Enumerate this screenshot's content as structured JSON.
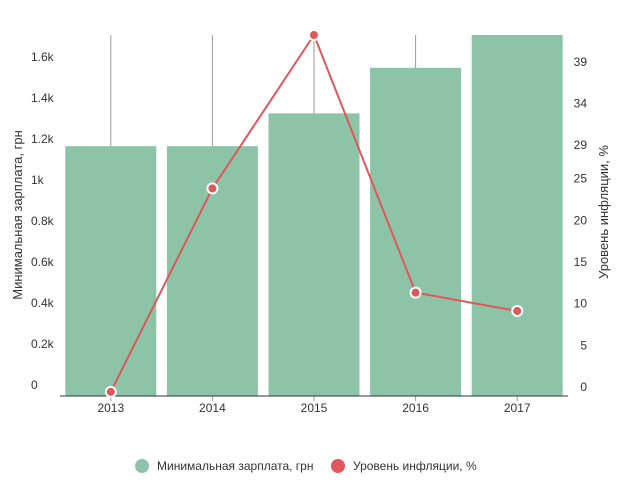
{
  "chart_data": {
    "type": "bar",
    "categories": [
      "2013",
      "2014",
      "2015",
      "2016",
      "2017"
    ],
    "series": [
      {
        "name": "Минимальная зарплата, грн",
        "type": "bar",
        "axis": "left",
        "color": "#8dc3a7",
        "values": [
          1218,
          1218,
          1378,
          1600,
          1760
        ]
      },
      {
        "name": "Уровень инфляции, %",
        "type": "line",
        "axis": "right",
        "color": "#e15759",
        "values": [
          0.5,
          24.9,
          43.3,
          12.4,
          10.2
        ]
      }
    ],
    "y_left": {
      "label": "Минимальная зарплата, грн",
      "ticks": [
        0,
        200,
        400,
        600,
        800,
        1000,
        1200,
        1400,
        1600
      ],
      "tick_labels": [
        "0",
        "0.2k",
        "0.4k",
        "0.6k",
        "0.8k",
        "1k",
        "1.2k",
        "1.4k",
        "1.6k"
      ],
      "range": [
        0,
        1760
      ]
    },
    "y_right": {
      "label": "Уровень инфляции, %",
      "ticks": [
        0,
        5,
        10,
        15,
        20,
        25,
        29,
        34,
        39
      ],
      "tick_labels": [
        "0",
        "5",
        "10",
        "15",
        "20",
        "25",
        "29",
        "34",
        "39"
      ],
      "range": [
        0,
        43.3
      ]
    },
    "grid": "vertical",
    "legend": "bottom"
  }
}
